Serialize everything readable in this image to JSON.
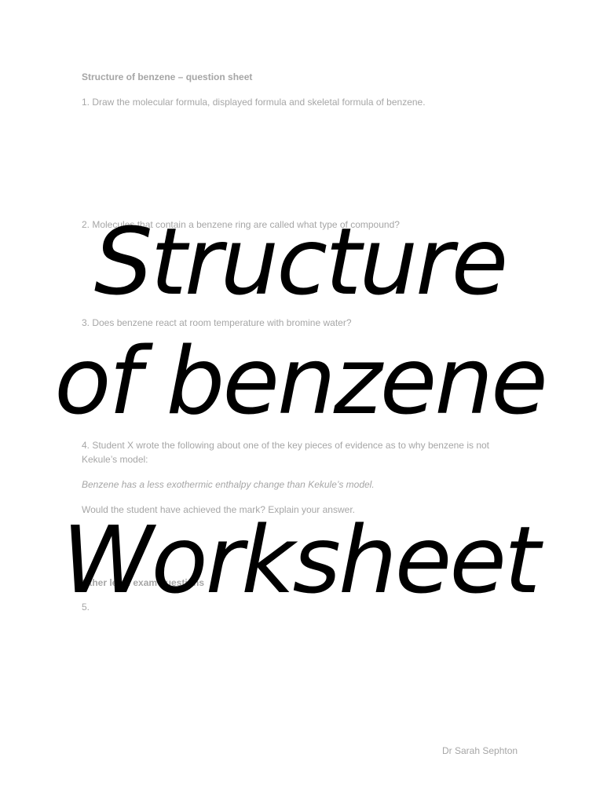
{
  "sheet": {
    "title": "Structure of benzene – question sheet",
    "q1": "1. Draw the molecular formula, displayed formula and skeletal formula of benzene.",
    "q2": "2. Molecules that contain a benzene ring are called what type of compound?",
    "q3": "3. Does benzene react at room temperature with bromine water?",
    "q4": "4. Student X wrote the following about one of the key pieces of evidence as to why benzene is not Kekule’s model:",
    "q4_quote": "Benzene has a less exothermic enthalpy change than Kekule’s model.",
    "q4_followup": "Would the student have achieved the mark? Explain your answer.",
    "section_heading": "Other level exam questions",
    "q5": "5.",
    "author": "Dr Sarah Sephton"
  },
  "overlay": {
    "line1": "Structure",
    "line2": "of benzene",
    "line3": "Worksheet"
  }
}
